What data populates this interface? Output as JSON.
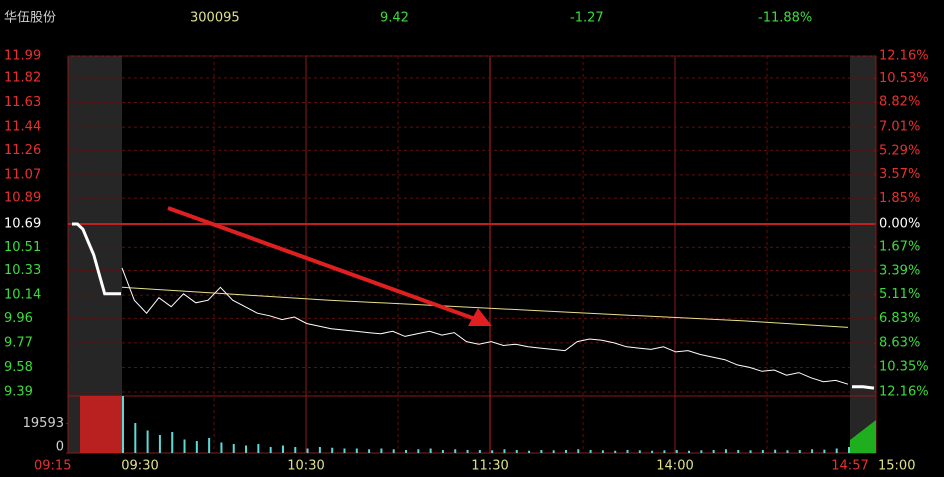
{
  "header": {
    "name": "华伍股份",
    "code": "300095",
    "price": "9.42",
    "change": "-1.27",
    "change_pct": "-11.88%"
  },
  "chart_data": {
    "type": "line",
    "ylim": [
      9.39,
      11.99
    ],
    "yticks": [
      11.99,
      11.82,
      11.63,
      11.44,
      11.26,
      11.07,
      10.89,
      10.69,
      10.51,
      10.33,
      10.14,
      9.96,
      9.77,
      9.58,
      9.39
    ],
    "y2lim": [
      -12.16,
      12.16
    ],
    "y2ticks": [
      {
        "value": 12.16,
        "label": "12.16%"
      },
      {
        "value": 10.53,
        "label": "10.53%"
      },
      {
        "value": 8.82,
        "label": "8.82%"
      },
      {
        "value": 7.01,
        "label": "7.01%"
      },
      {
        "value": 5.29,
        "label": "5.29%"
      },
      {
        "value": 3.57,
        "label": "3.57%"
      },
      {
        "value": 1.85,
        "label": "1.85%"
      },
      {
        "value": 0,
        "label": "0.00%"
      },
      {
        "value": -1.67,
        "label": "1.67%"
      },
      {
        "value": -3.39,
        "label": "3.39%"
      },
      {
        "value": -5.11,
        "label": "5.11%"
      },
      {
        "value": -6.83,
        "label": "6.83%"
      },
      {
        "value": -8.63,
        "label": "8.63%"
      },
      {
        "value": -10.35,
        "label": "10.35%"
      },
      {
        "value": -12.16,
        "label": "12.16%"
      }
    ],
    "categories": [
      "09:15",
      "09:30",
      "10:30",
      "11:30",
      "14:00",
      "14:57",
      "15:00"
    ],
    "pre_auction": [
      10.69,
      10.69,
      10.65,
      10.55,
      10.45,
      10.3,
      10.15,
      10.15,
      10.15,
      10.15
    ],
    "price": [
      10.35,
      10.1,
      10.0,
      10.12,
      10.05,
      10.15,
      10.08,
      10.1,
      10.2,
      10.1,
      10.05,
      10.0,
      9.98,
      9.95,
      9.97,
      9.92,
      9.9,
      9.88,
      9.87,
      9.86,
      9.85,
      9.84,
      9.86,
      9.82,
      9.84,
      9.86,
      9.83,
      9.85,
      9.78,
      9.76,
      9.78,
      9.75,
      9.76,
      9.74,
      9.73,
      9.72,
      9.71,
      9.78,
      9.8,
      9.79,
      9.77,
      9.74,
      9.73,
      9.72,
      9.74,
      9.7,
      9.71,
      9.68,
      9.66,
      9.64,
      9.6,
      9.58,
      9.55,
      9.56,
      9.52,
      9.54,
      9.5,
      9.47,
      9.48,
      9.45
    ],
    "avg_price": [
      10.2,
      10.15,
      10.1,
      10.06,
      10.02,
      9.98,
      9.94,
      9.89
    ],
    "post_auction": [
      9.43,
      9.43,
      9.42
    ],
    "price_color": "#ffffff",
    "avg_color": "#e8e08a",
    "volume": [
      38000,
      20000,
      15000,
      12000,
      14000,
      9000,
      8000,
      10000,
      7000,
      6000,
      5000,
      6000,
      4000,
      5000,
      4000,
      3000,
      4000,
      3500,
      3000,
      3000,
      2500,
      3000,
      2500,
      2000,
      2500,
      3000,
      2000,
      2500,
      2000,
      2000,
      1800,
      2500,
      2000,
      1500,
      2000,
      1800,
      2000,
      2500,
      2000,
      1800,
      1500,
      2000,
      1800,
      1500,
      1800,
      2000,
      1500,
      1800,
      2000,
      2500,
      2000,
      1800,
      2000,
      2200,
      1800,
      2000,
      2500,
      2200,
      3000,
      4000
    ],
    "volume_color": "#5fd8d8",
    "vlim": [
      0,
      38000
    ],
    "vticks": [
      19593,
      0
    ]
  }
}
